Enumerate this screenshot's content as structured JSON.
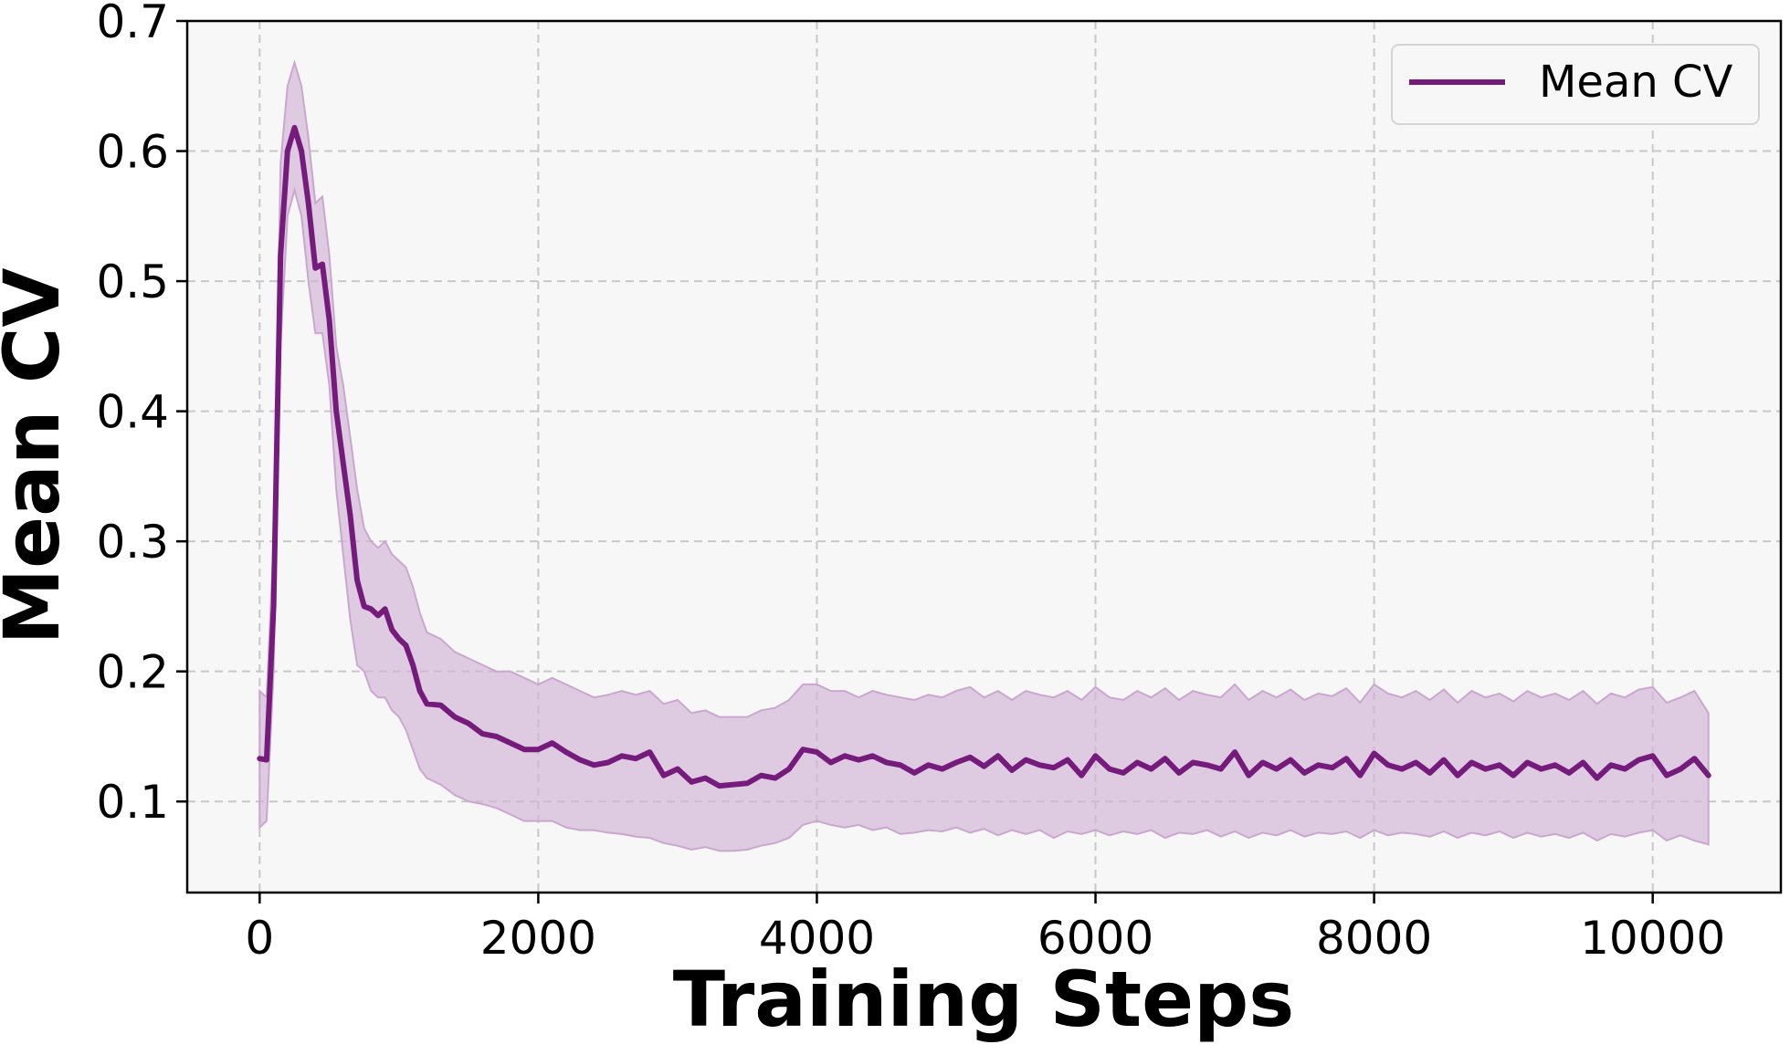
{
  "chart_data": {
    "type": "line",
    "title": "",
    "xlabel": "Training Steps",
    "ylabel": "Mean CV",
    "xlim": [
      -520,
      10920
    ],
    "ylim": [
      0.03,
      0.7
    ],
    "xticks": [
      0,
      2000,
      4000,
      6000,
      8000,
      10000
    ],
    "xtick_labels": [
      "0",
      "2000",
      "4000",
      "6000",
      "8000",
      "10000"
    ],
    "yticks": [
      0.1,
      0.2,
      0.3,
      0.4,
      0.5,
      0.6,
      0.7
    ],
    "ytick_labels": [
      "0.1",
      "0.2",
      "0.3",
      "0.4",
      "0.5",
      "0.6",
      "0.7"
    ],
    "grid": true,
    "legend_position": "top-right",
    "colors": {
      "line": "#741b7c",
      "band": "#d2b3d6",
      "band_edge": "#caa7cf",
      "plot_background": "#f7f7f7",
      "grid": "#c8c8c8"
    },
    "series": [
      {
        "name": "Mean CV",
        "x": [
          0,
          50,
          100,
          150,
          200,
          250,
          300,
          350,
          400,
          450,
          500,
          550,
          600,
          650,
          700,
          750,
          800,
          850,
          900,
          950,
          1000,
          1050,
          1100,
          1150,
          1200,
          1300,
          1400,
          1500,
          1600,
          1700,
          1800,
          1900,
          2000,
          2100,
          2200,
          2300,
          2400,
          2500,
          2600,
          2700,
          2800,
          2900,
          3000,
          3100,
          3200,
          3300,
          3400,
          3500,
          3600,
          3700,
          3800,
          3900,
          4000,
          4100,
          4200,
          4300,
          4400,
          4500,
          4600,
          4700,
          4800,
          4900,
          5000,
          5100,
          5200,
          5300,
          5400,
          5500,
          5600,
          5700,
          5800,
          5900,
          6000,
          6100,
          6200,
          6300,
          6400,
          6500,
          6600,
          6700,
          6800,
          6900,
          7000,
          7100,
          7200,
          7300,
          7400,
          7500,
          7600,
          7700,
          7800,
          7900,
          8000,
          8100,
          8200,
          8300,
          8400,
          8500,
          8600,
          8700,
          8800,
          8900,
          9000,
          9100,
          9200,
          9300,
          9400,
          9500,
          9600,
          9700,
          9800,
          9900,
          10000,
          10100,
          10200,
          10300,
          10400
        ],
        "y": [
          0.133,
          0.132,
          0.25,
          0.52,
          0.6,
          0.618,
          0.6,
          0.56,
          0.51,
          0.513,
          0.47,
          0.4,
          0.36,
          0.32,
          0.27,
          0.25,
          0.248,
          0.243,
          0.248,
          0.232,
          0.225,
          0.22,
          0.205,
          0.185,
          0.175,
          0.174,
          0.165,
          0.16,
          0.152,
          0.15,
          0.145,
          0.14,
          0.14,
          0.145,
          0.138,
          0.132,
          0.128,
          0.13,
          0.135,
          0.133,
          0.138,
          0.12,
          0.125,
          0.115,
          0.118,
          0.112,
          0.113,
          0.114,
          0.12,
          0.118,
          0.125,
          0.14,
          0.138,
          0.13,
          0.135,
          0.132,
          0.135,
          0.13,
          0.128,
          0.122,
          0.128,
          0.125,
          0.13,
          0.134,
          0.127,
          0.135,
          0.124,
          0.132,
          0.128,
          0.126,
          0.132,
          0.12,
          0.135,
          0.125,
          0.122,
          0.13,
          0.125,
          0.133,
          0.122,
          0.13,
          0.128,
          0.125,
          0.138,
          0.12,
          0.13,
          0.125,
          0.132,
          0.122,
          0.128,
          0.126,
          0.133,
          0.12,
          0.137,
          0.128,
          0.125,
          0.13,
          0.122,
          0.132,
          0.12,
          0.13,
          0.125,
          0.128,
          0.12,
          0.13,
          0.125,
          0.128,
          0.122,
          0.13,
          0.118,
          0.128,
          0.125,
          0.132,
          0.135,
          0.12,
          0.125,
          0.133,
          0.12
        ],
        "lower": [
          0.08,
          0.085,
          0.2,
          0.45,
          0.55,
          0.57,
          0.55,
          0.5,
          0.46,
          0.46,
          0.42,
          0.34,
          0.29,
          0.24,
          0.205,
          0.2,
          0.185,
          0.18,
          0.18,
          0.17,
          0.165,
          0.155,
          0.14,
          0.125,
          0.118,
          0.113,
          0.105,
          0.1,
          0.098,
          0.095,
          0.09,
          0.085,
          0.085,
          0.085,
          0.08,
          0.078,
          0.078,
          0.076,
          0.075,
          0.073,
          0.072,
          0.068,
          0.066,
          0.063,
          0.065,
          0.062,
          0.062,
          0.063,
          0.066,
          0.068,
          0.072,
          0.082,
          0.085,
          0.082,
          0.08,
          0.082,
          0.078,
          0.08,
          0.075,
          0.076,
          0.078,
          0.077,
          0.08,
          0.076,
          0.079,
          0.074,
          0.078,
          0.075,
          0.078,
          0.072,
          0.077,
          0.075,
          0.078,
          0.074,
          0.077,
          0.075,
          0.078,
          0.072,
          0.076,
          0.075,
          0.078,
          0.073,
          0.077,
          0.072,
          0.076,
          0.074,
          0.078,
          0.073,
          0.076,
          0.075,
          0.077,
          0.072,
          0.078,
          0.074,
          0.076,
          0.075,
          0.073,
          0.077,
          0.072,
          0.076,
          0.074,
          0.077,
          0.072,
          0.076,
          0.073,
          0.075,
          0.072,
          0.076,
          0.07,
          0.075,
          0.073,
          0.076,
          0.078,
          0.07,
          0.074,
          0.07,
          0.067
        ],
        "upper": [
          0.185,
          0.18,
          0.3,
          0.59,
          0.65,
          0.668,
          0.65,
          0.61,
          0.56,
          0.565,
          0.52,
          0.45,
          0.42,
          0.38,
          0.34,
          0.31,
          0.3,
          0.295,
          0.3,
          0.29,
          0.285,
          0.28,
          0.265,
          0.245,
          0.23,
          0.225,
          0.215,
          0.21,
          0.205,
          0.2,
          0.2,
          0.195,
          0.19,
          0.195,
          0.19,
          0.185,
          0.18,
          0.182,
          0.185,
          0.182,
          0.185,
          0.175,
          0.178,
          0.168,
          0.17,
          0.165,
          0.165,
          0.165,
          0.17,
          0.172,
          0.178,
          0.19,
          0.19,
          0.185,
          0.185,
          0.18,
          0.185,
          0.182,
          0.18,
          0.178,
          0.182,
          0.18,
          0.185,
          0.188,
          0.18,
          0.185,
          0.178,
          0.185,
          0.182,
          0.18,
          0.185,
          0.178,
          0.188,
          0.18,
          0.178,
          0.185,
          0.18,
          0.187,
          0.178,
          0.185,
          0.182,
          0.18,
          0.19,
          0.178,
          0.185,
          0.18,
          0.186,
          0.178,
          0.183,
          0.181,
          0.187,
          0.176,
          0.19,
          0.183,
          0.18,
          0.185,
          0.178,
          0.186,
          0.176,
          0.185,
          0.18,
          0.183,
          0.177,
          0.185,
          0.18,
          0.183,
          0.178,
          0.185,
          0.175,
          0.183,
          0.18,
          0.186,
          0.188,
          0.176,
          0.18,
          0.185,
          0.168
        ]
      }
    ]
  },
  "legend": {
    "label": "Mean CV"
  }
}
